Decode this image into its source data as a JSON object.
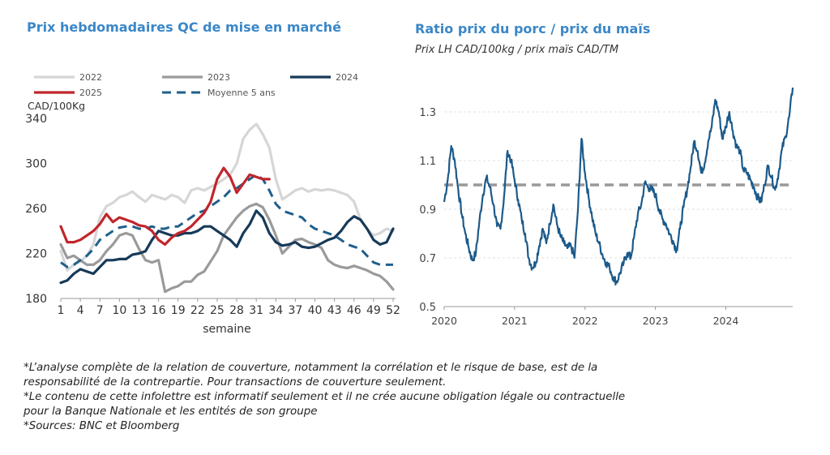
{
  "left_title": "Prix hebdomadaires QC de mise en marché",
  "right_title": "Ratio prix du porc / prix du maïs",
  "right_subtitle": "Prix LH CAD/100kg / prix maïs CAD/TM",
  "notes": [
    "*L’analyse complète de la relation de couverture, notamment la corrélation et le risque de base, est de la",
    "responsabilité de la contrepartie. Pour transactions de couverture seulement.",
    "*Le contenu de cette infolettre est informatif seulement et il ne crée aucune obligation légale ou contractuelle",
    "pour la Banque Nationale et les entités de son groupe",
    "*Sources: BNC et Bloomberg"
  ],
  "chart_data": [
    {
      "type": "line",
      "ylabel": "CAD/100Kg",
      "xlabel": "semaine",
      "ylim": [
        180,
        340
      ],
      "xlim": [
        1,
        52
      ],
      "yticks": [
        180,
        220,
        260,
        300,
        340
      ],
      "xticks": [
        1,
        4,
        7,
        10,
        13,
        16,
        19,
        22,
        25,
        28,
        31,
        34,
        37,
        40,
        43,
        46,
        49,
        52
      ],
      "legend_position": "top",
      "series": [
        {
          "name": "2022",
          "color": "#d6d6d6",
          "width": 3.2,
          "dash": false,
          "values": [
            222,
            205,
            210,
            213,
            218,
            228,
            252,
            262,
            265,
            270,
            272,
            275,
            270,
            266,
            272,
            270,
            268,
            272,
            270,
            265,
            276,
            278,
            276,
            279,
            282,
            286,
            290,
            300,
            322,
            330,
            335,
            326,
            314,
            286,
            268,
            272,
            276,
            278,
            275,
            277,
            276,
            277,
            276,
            274,
            272,
            266,
            250,
            242,
            236,
            238,
            242,
            240
          ]
        },
        {
          "name": "2023",
          "color": "#9a9a9a",
          "width": 3.2,
          "dash": false,
          "values": [
            228,
            216,
            218,
            214,
            210,
            210,
            214,
            222,
            228,
            236,
            238,
            236,
            224,
            214,
            212,
            214,
            186,
            189,
            191,
            195,
            195,
            201,
            204,
            213,
            222,
            236,
            244,
            252,
            258,
            262,
            264,
            261,
            250,
            236,
            220,
            226,
            232,
            233,
            230,
            228,
            225,
            214,
            210,
            208,
            207,
            209,
            207,
            205,
            202,
            200,
            195,
            188
          ]
        },
        {
          "name": "2024",
          "color": "#163a59",
          "width": 3.2,
          "dash": false,
          "values": [
            194,
            196,
            202,
            206,
            204,
            202,
            208,
            214,
            214,
            215,
            215,
            219,
            220,
            222,
            232,
            240,
            238,
            236,
            236,
            238,
            238,
            240,
            244,
            244,
            240,
            236,
            232,
            226,
            238,
            246,
            258,
            252,
            238,
            230,
            227,
            228,
            230,
            226,
            225,
            226,
            229,
            232,
            234,
            240,
            248,
            253,
            250,
            242,
            232,
            228,
            230,
            242
          ]
        },
        {
          "name": "2025",
          "color": "#c0262c",
          "width": 3.2,
          "dash": false,
          "values": [
            244,
            230,
            230,
            232,
            236,
            240,
            246,
            255,
            248,
            252,
            250,
            248,
            245,
            244,
            240,
            232,
            228,
            234,
            238,
            240,
            244,
            250,
            256,
            266,
            286,
            296,
            288,
            274,
            282,
            290,
            288,
            286,
            286
          ]
        },
        {
          "name": "Moyenne 5 ans",
          "color": "#1f5f8b",
          "width": 3,
          "dash": true,
          "values": [
            212,
            208,
            210,
            214,
            218,
            224,
            232,
            236,
            240,
            243,
            244,
            244,
            242,
            242,
            244,
            242,
            242,
            244,
            244,
            248,
            252,
            256,
            258,
            262,
            266,
            270,
            276,
            278,
            282,
            286,
            290,
            286,
            276,
            264,
            258,
            256,
            254,
            252,
            246,
            242,
            240,
            238,
            236,
            232,
            228,
            226,
            224,
            218,
            212,
            210,
            210,
            210
          ]
        }
      ]
    },
    {
      "type": "line",
      "title": "Ratio prix du porc / prix du maïs",
      "subtitle": "Prix LH CAD/100kg / prix maïs CAD/TM",
      "ylim": [
        0.5,
        1.4
      ],
      "yticks": [
        0.5,
        0.7,
        0.9,
        1.1,
        1.3
      ],
      "xticks": [
        "2020",
        "2021",
        "2022",
        "2023",
        "2024"
      ],
      "xlim": [
        2020,
        2024.95
      ],
      "reference_line": 1.0,
      "series": [
        {
          "name": "",
          "color": "#1c5a8a",
          "x": [
            2020.0,
            2020.05,
            2020.1,
            2020.15,
            2020.2,
            2020.25,
            2020.3,
            2020.35,
            2020.4,
            2020.45,
            2020.5,
            2020.55,
            2020.6,
            2020.65,
            2020.7,
            2020.75,
            2020.8,
            2020.85,
            2020.9,
            2020.95,
            2021.0,
            2021.05,
            2021.1,
            2021.15,
            2021.2,
            2021.25,
            2021.3,
            2021.35,
            2021.4,
            2021.45,
            2021.5,
            2021.55,
            2021.6,
            2021.65,
            2021.7,
            2021.75,
            2021.8,
            2021.85,
            2021.9,
            2021.95,
            2022.0,
            2022.05,
            2022.1,
            2022.15,
            2022.2,
            2022.25,
            2022.3,
            2022.35,
            2022.4,
            2022.45,
            2022.5,
            2022.55,
            2022.6,
            2022.65,
            2022.7,
            2022.75,
            2022.8,
            2022.85,
            2022.9,
            2022.95,
            2023.0,
            2023.05,
            2023.1,
            2023.15,
            2023.2,
            2023.25,
            2023.3,
            2023.35,
            2023.4,
            2023.45,
            2023.5,
            2023.55,
            2023.6,
            2023.65,
            2023.7,
            2023.75,
            2023.8,
            2023.85,
            2023.9,
            2023.95,
            2024.0,
            2024.05,
            2024.1,
            2024.15,
            2024.2,
            2024.25,
            2024.3,
            2024.35,
            2024.4,
            2024.45,
            2024.5,
            2024.55,
            2024.6,
            2024.65,
            2024.7,
            2024.75,
            2024.8,
            2024.85,
            2024.9,
            2024.95
          ],
          "values": [
            0.93,
            1.02,
            1.16,
            1.1,
            0.98,
            0.88,
            0.8,
            0.74,
            0.69,
            0.72,
            0.85,
            0.96,
            1.03,
            0.99,
            0.92,
            0.83,
            0.82,
            0.95,
            1.14,
            1.1,
            1.02,
            0.94,
            0.86,
            0.8,
            0.7,
            0.66,
            0.68,
            0.75,
            0.82,
            0.76,
            0.84,
            0.92,
            0.84,
            0.79,
            0.76,
            0.74,
            0.75,
            0.7,
            0.9,
            1.19,
            1.05,
            0.95,
            0.87,
            0.8,
            0.76,
            0.71,
            0.68,
            0.66,
            0.62,
            0.6,
            0.64,
            0.68,
            0.72,
            0.7,
            0.79,
            0.88,
            0.92,
            1.01,
            0.99,
            0.98,
            0.96,
            0.9,
            0.86,
            0.84,
            0.8,
            0.77,
            0.73,
            0.82,
            0.91,
            0.98,
            1.07,
            1.18,
            1.14,
            1.05,
            1.09,
            1.18,
            1.24,
            1.35,
            1.3,
            1.19,
            1.24,
            1.3,
            1.22,
            1.16,
            1.14,
            1.06,
            1.05,
            1.02,
            0.99,
            0.95,
            0.93,
            1.0,
            1.08,
            1.03,
            0.98,
            1.05,
            1.15,
            1.2,
            1.28,
            1.4
          ]
        }
      ]
    }
  ]
}
